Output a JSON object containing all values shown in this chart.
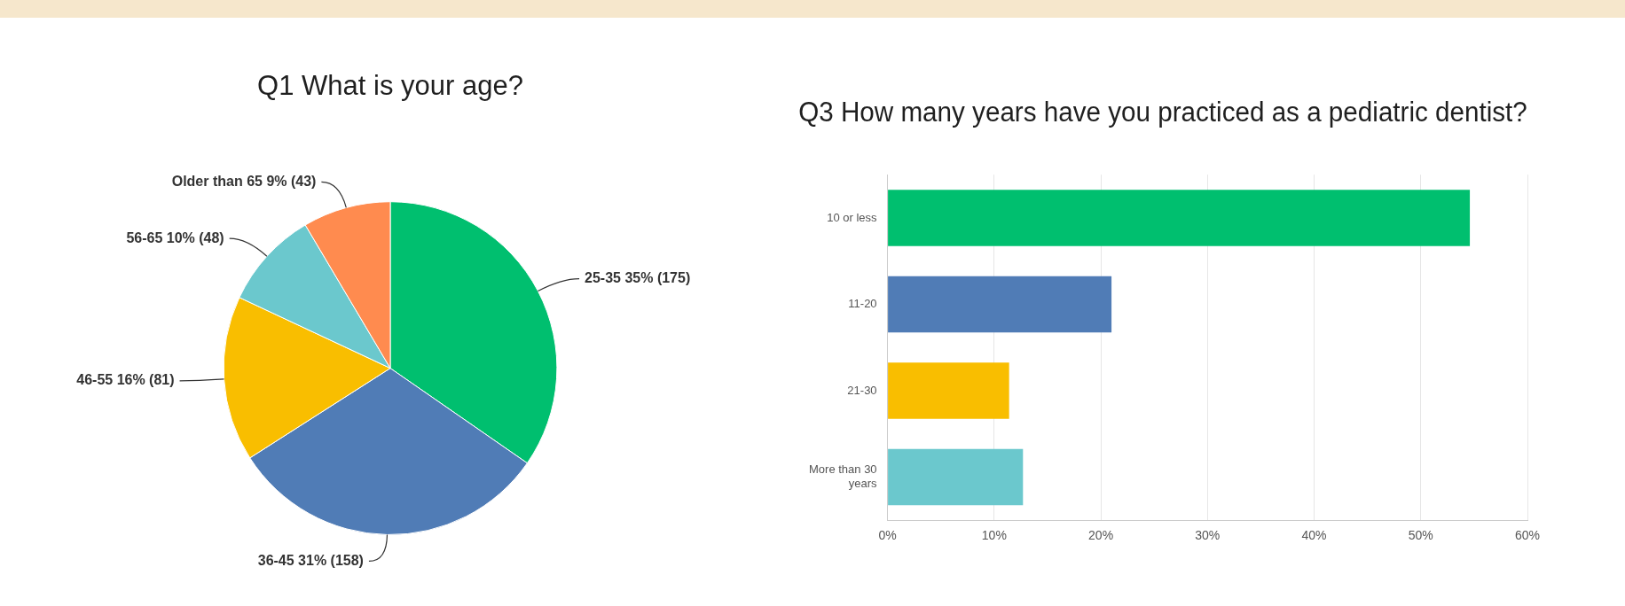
{
  "chart_data": [
    {
      "type": "pie",
      "title": "Q1 What is your age?",
      "categories": [
        "25-35",
        "36-45",
        "46-55",
        "56-65",
        "Older than 65"
      ],
      "values": [
        175,
        158,
        81,
        48,
        43
      ],
      "value_labels": [
        "35% (175)",
        "31% (158)",
        "16% (81)",
        "10% (48)",
        "9% (43)"
      ],
      "colors": [
        "#00bf6f",
        "#507cb6",
        "#f9be00",
        "#6bc8cd",
        "#ff8b4f"
      ],
      "legend": false
    },
    {
      "type": "bar",
      "orientation": "horizontal",
      "title": "Q3 How many years have you practiced as a pediatric dentist?",
      "categories": [
        "10 or less",
        "11-20",
        "21-30",
        "More than 30 years"
      ],
      "values": [
        54.6,
        21.0,
        11.4,
        12.7
      ],
      "colors": [
        "#00bf6f",
        "#507cb6",
        "#f9be00",
        "#6bc8cd"
      ],
      "xlim": [
        0,
        60
      ],
      "xticks": [
        {
          "value": 0,
          "label": "0%"
        },
        {
          "value": 10,
          "label": "10%"
        },
        {
          "value": 20,
          "label": "20%"
        },
        {
          "value": 30,
          "label": "30%"
        },
        {
          "value": 40,
          "label": "40%"
        },
        {
          "value": 50,
          "label": "50%"
        },
        {
          "value": 60,
          "label": "60%"
        }
      ],
      "grid": "x",
      "legend": false
    }
  ]
}
